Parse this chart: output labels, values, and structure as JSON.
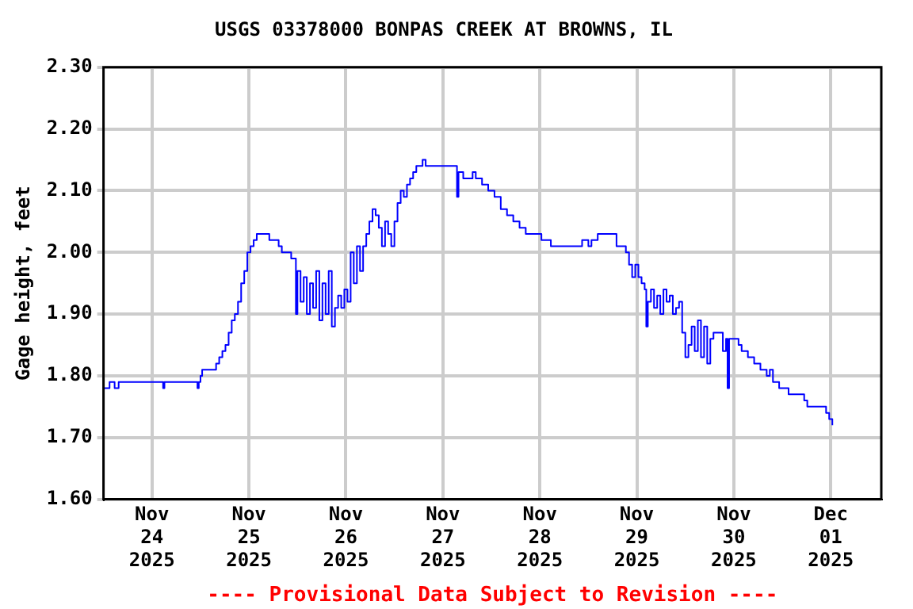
{
  "chart_data": {
    "type": "step",
    "title": "USGS 03378000 BONPAS CREEK AT BROWNS, IL",
    "ylabel": "Gage height, feet",
    "annotations": [
      "---- Provisional Data Subject to Revision ----"
    ],
    "xlim": [
      "2025-11-23T12:00",
      "2025-12-01T12:30"
    ],
    "xticks": [
      {
        "value": "2025-11-24",
        "label": "Nov 24 2025"
      },
      {
        "value": "2025-11-25",
        "label": "Nov 25 2025"
      },
      {
        "value": "2025-11-26",
        "label": "Nov 26 2025"
      },
      {
        "value": "2025-11-27",
        "label": "Nov 27 2025"
      },
      {
        "value": "2025-11-28",
        "label": "Nov 28 2025"
      },
      {
        "value": "2025-11-29",
        "label": "Nov 29 2025"
      },
      {
        "value": "2025-11-30",
        "label": "Nov 30 2025"
      },
      {
        "value": "2025-12-01",
        "label": "Dec 01 2025"
      }
    ],
    "ylim": [
      1.6,
      2.3
    ],
    "yticks": [
      {
        "value": 1.6,
        "label": "1.60"
      },
      {
        "value": 1.7,
        "label": "1.70"
      },
      {
        "value": 1.8,
        "label": "1.80"
      },
      {
        "value": 1.9,
        "label": "1.90"
      },
      {
        "value": 2.0,
        "label": "2.00"
      },
      {
        "value": 2.1,
        "label": "2.10"
      },
      {
        "value": 2.2,
        "label": "2.20"
      },
      {
        "value": 2.3,
        "label": "2.30"
      }
    ],
    "grid": true,
    "series": [
      {
        "color": "#0000ff",
        "x": [
          "2025-11-23T12:00",
          "2025-11-23T13:30",
          "2025-11-23T14:45",
          "2025-11-23T15:45",
          "2025-11-24T02:20",
          "2025-11-24T02:45",
          "2025-11-24T03:05",
          "2025-11-24T10:50",
          "2025-11-24T11:15",
          "2025-11-24T11:35",
          "2025-11-24T12:00",
          "2025-11-24T12:25",
          "2025-11-24T15:05",
          "2025-11-24T15:52",
          "2025-11-24T16:38",
          "2025-11-24T17:25",
          "2025-11-24T18:11",
          "2025-11-24T18:58",
          "2025-11-24T19:44",
          "2025-11-24T20:30",
          "2025-11-24T21:17",
          "2025-11-24T22:04",
          "2025-11-24T22:50",
          "2025-11-24T23:36",
          "2025-11-25T00:23",
          "2025-11-25T01:10",
          "2025-11-25T01:56",
          "2025-11-25T04:15",
          "2025-11-25T05:02",
          "2025-11-25T07:21",
          "2025-11-25T08:08",
          "2025-11-25T09:41",
          "2025-11-25T10:27",
          "2025-11-25T11:13",
          "2025-11-25T11:37",
          "2025-11-25T12:00",
          "2025-11-25T12:46",
          "2025-11-25T13:33",
          "2025-11-25T14:19",
          "2025-11-25T15:06",
          "2025-11-25T15:52",
          "2025-11-25T16:38",
          "2025-11-25T17:25",
          "2025-11-25T18:11",
          "2025-11-25T18:58",
          "2025-11-25T19:44",
          "2025-11-25T20:30",
          "2025-11-25T21:17",
          "2025-11-25T22:04",
          "2025-11-25T22:50",
          "2025-11-25T23:36",
          "2025-11-26T00:23",
          "2025-11-26T01:10",
          "2025-11-26T01:56",
          "2025-11-26T02:43",
          "2025-11-26T03:29",
          "2025-11-26T04:15",
          "2025-11-26T05:02",
          "2025-11-26T05:48",
          "2025-11-26T06:35",
          "2025-11-26T07:21",
          "2025-11-26T08:08",
          "2025-11-26T08:54",
          "2025-11-26T09:41",
          "2025-11-26T10:27",
          "2025-11-26T11:13",
          "2025-11-26T12:00",
          "2025-11-26T12:46",
          "2025-11-26T13:33",
          "2025-11-26T14:19",
          "2025-11-26T15:06",
          "2025-11-26T15:52",
          "2025-11-26T16:38",
          "2025-11-26T17:25",
          "2025-11-26T18:58",
          "2025-11-26T19:44",
          "2025-11-27T02:43",
          "2025-11-27T03:29",
          "2025-11-27T03:52",
          "2025-11-27T05:02",
          "2025-11-27T06:35",
          "2025-11-27T07:21",
          "2025-11-27T08:08",
          "2025-11-27T09:41",
          "2025-11-27T11:13",
          "2025-11-27T12:46",
          "2025-11-27T14:19",
          "2025-11-27T15:52",
          "2025-11-27T17:25",
          "2025-11-27T18:58",
          "2025-11-27T20:30",
          "2025-11-27T22:50",
          "2025-11-28T00:23",
          "2025-11-28T02:43",
          "2025-11-28T09:41",
          "2025-11-28T10:27",
          "2025-11-28T12:00",
          "2025-11-28T12:46",
          "2025-11-28T14:19",
          "2025-11-28T16:38",
          "2025-11-28T18:58",
          "2025-11-28T21:17",
          "2025-11-28T22:04",
          "2025-11-28T22:50",
          "2025-11-28T23:36",
          "2025-11-29T00:23",
          "2025-11-29T01:10",
          "2025-11-29T01:56",
          "2025-11-29T02:20",
          "2025-11-29T02:43",
          "2025-11-29T03:29",
          "2025-11-29T04:15",
          "2025-11-29T05:02",
          "2025-11-29T05:48",
          "2025-11-29T06:35",
          "2025-11-29T07:21",
          "2025-11-29T08:08",
          "2025-11-29T08:54",
          "2025-11-29T09:41",
          "2025-11-29T10:27",
          "2025-11-29T11:13",
          "2025-11-29T12:00",
          "2025-11-29T12:46",
          "2025-11-29T13:33",
          "2025-11-29T14:19",
          "2025-11-29T15:06",
          "2025-11-29T15:52",
          "2025-11-29T16:38",
          "2025-11-29T17:25",
          "2025-11-29T18:11",
          "2025-11-29T18:58",
          "2025-11-29T20:30",
          "2025-11-29T21:17",
          "2025-11-29T22:04",
          "2025-11-29T22:27",
          "2025-11-29T22:50",
          "2025-11-30T00:23",
          "2025-11-30T01:10",
          "2025-11-30T01:56",
          "2025-11-30T03:29",
          "2025-11-30T05:02",
          "2025-11-30T06:35",
          "2025-11-30T08:08",
          "2025-11-30T08:54",
          "2025-11-30T09:41",
          "2025-11-30T11:13",
          "2025-11-30T12:46",
          "2025-11-30T13:33",
          "2025-11-30T17:25",
          "2025-11-30T18:11",
          "2025-11-30T22:04",
          "2025-11-30T22:50",
          "2025-11-30T23:36",
          "2025-12-01T00:23"
        ],
        "values": [
          1.78,
          1.79,
          1.78,
          1.79,
          1.79,
          1.78,
          1.79,
          1.79,
          1.78,
          1.79,
          1.8,
          1.81,
          1.81,
          1.82,
          1.83,
          1.84,
          1.85,
          1.87,
          1.89,
          1.9,
          1.92,
          1.95,
          1.97,
          2.0,
          2.01,
          2.02,
          2.03,
          2.03,
          2.02,
          2.01,
          2.0,
          2.0,
          1.99,
          1.99,
          1.9,
          1.97,
          1.92,
          1.96,
          1.9,
          1.95,
          1.91,
          1.97,
          1.89,
          1.95,
          1.9,
          1.97,
          1.88,
          1.91,
          1.93,
          1.91,
          1.94,
          1.92,
          2.0,
          1.95,
          2.01,
          1.97,
          2.01,
          2.03,
          2.05,
          2.07,
          2.06,
          2.04,
          2.01,
          2.05,
          2.03,
          2.01,
          2.05,
          2.08,
          2.1,
          2.09,
          2.11,
          2.12,
          2.13,
          2.14,
          2.15,
          2.14,
          2.14,
          2.09,
          2.13,
          2.12,
          2.12,
          2.13,
          2.12,
          2.11,
          2.1,
          2.09,
          2.07,
          2.06,
          2.05,
          2.04,
          2.03,
          2.03,
          2.02,
          2.01,
          2.01,
          2.02,
          2.01,
          2.02,
          2.03,
          2.03,
          2.01,
          2.0,
          1.98,
          1.96,
          1.98,
          1.96,
          1.95,
          1.94,
          1.88,
          1.92,
          1.94,
          1.91,
          1.93,
          1.9,
          1.94,
          1.92,
          1.93,
          1.9,
          1.91,
          1.92,
          1.87,
          1.83,
          1.85,
          1.88,
          1.84,
          1.89,
          1.83,
          1.88,
          1.82,
          1.86,
          1.87,
          1.87,
          1.84,
          1.86,
          1.78,
          1.86,
          1.86,
          1.85,
          1.84,
          1.83,
          1.82,
          1.81,
          1.8,
          1.81,
          1.79,
          1.78,
          1.78,
          1.77,
          1.76,
          1.75,
          1.75,
          1.74,
          1.73,
          1.72
        ]
      }
    ]
  }
}
